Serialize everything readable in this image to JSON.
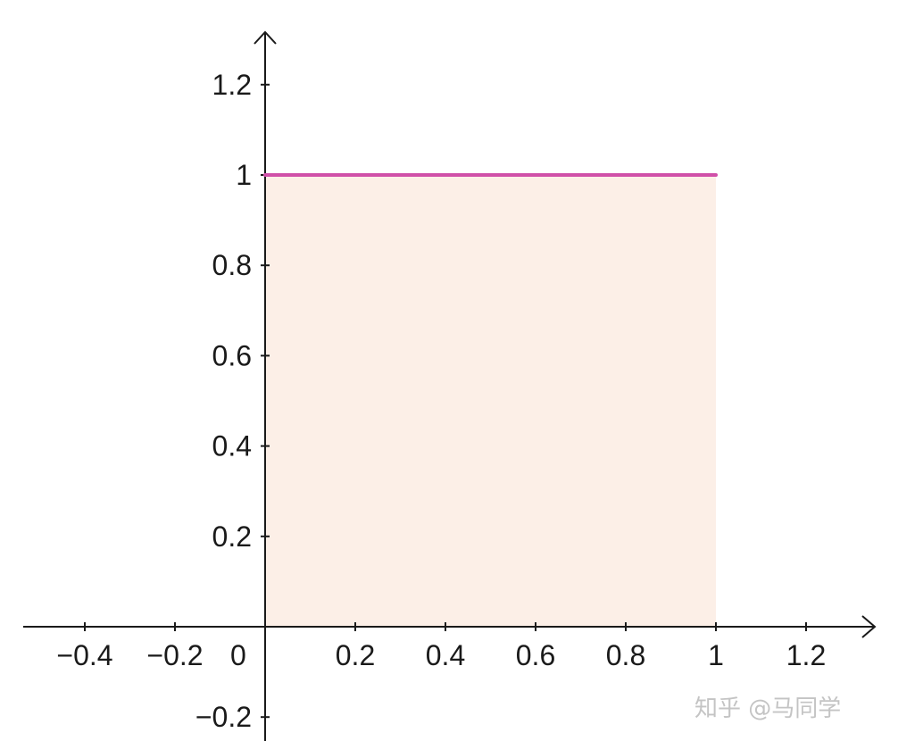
{
  "chart_data": {
    "type": "line",
    "title": "",
    "xlabel": "",
    "ylabel": "",
    "xlim": [
      -0.54,
      1.37
    ],
    "ylim": [
      -0.25,
      1.32
    ],
    "x_ticks": [
      {
        "value": -0.4,
        "label": "−0.4"
      },
      {
        "value": -0.2,
        "label": "−0.2"
      },
      {
        "value": 0.2,
        "label": "0.2"
      },
      {
        "value": 0.4,
        "label": "0.4"
      },
      {
        "value": 0.6,
        "label": "0.6"
      },
      {
        "value": 0.8,
        "label": "0.8"
      },
      {
        "value": 1,
        "label": "1"
      },
      {
        "value": 1.2,
        "label": "1.2"
      }
    ],
    "y_ticks": [
      {
        "value": -0.2,
        "label": "−0.2"
      },
      {
        "value": 0.2,
        "label": "0.2"
      },
      {
        "value": 0.4,
        "label": "0.4"
      },
      {
        "value": 0.6,
        "label": "0.6"
      },
      {
        "value": 0.8,
        "label": "0.8"
      },
      {
        "value": 1,
        "label": "1"
      },
      {
        "value": 1.2,
        "label": "1.2"
      }
    ],
    "origin_label": "0",
    "grid": false,
    "series": [
      {
        "x": [
          0,
          1
        ],
        "y": [
          1,
          1
        ],
        "color": "#d04fa8",
        "fill_to_axis": true,
        "fill_color": "#fcefe7"
      }
    ]
  },
  "watermark": {
    "text": "知乎 @马同学"
  }
}
